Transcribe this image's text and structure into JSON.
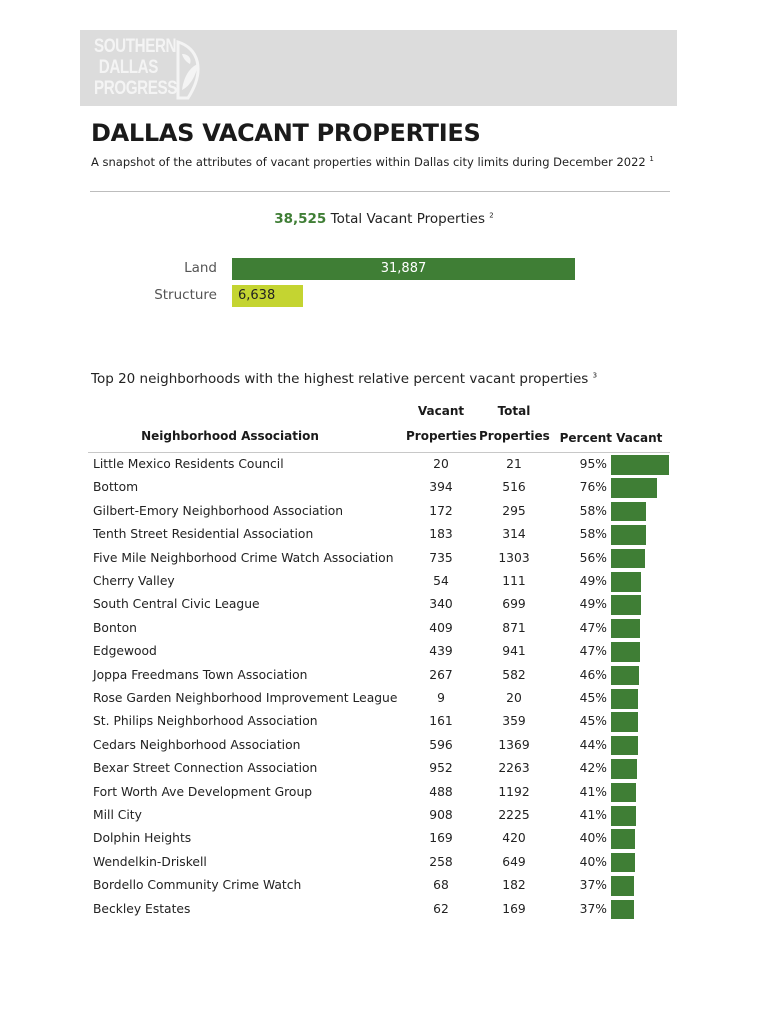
{
  "logo": {
    "text": [
      "SOUTHERN",
      "DALLAS",
      "PROGRESS"
    ]
  },
  "title": "DALLAS VACANT PROPERTIES",
  "subtitle": "A snapshot of the attributes of vacant properties within Dallas city limits during December 2022",
  "subtitle_footnote": "1",
  "total": {
    "value": "38,525",
    "label": "Total Vacant Properties",
    "footnote": "2"
  },
  "colors": {
    "land": "#3f7e35",
    "structure": "#c4d431",
    "percent_bar": "#3f7e35",
    "banner": "#dcdcdc"
  },
  "chart_data": {
    "type": "bar",
    "orientation": "horizontal",
    "categories": [
      "Land",
      "Structure"
    ],
    "values": [
      31887,
      6638
    ],
    "labels": [
      "31,887",
      "6,638"
    ]
  },
  "table": {
    "title": "Top 20 neighborhoods with the highest relative percent vacant properties",
    "title_footnote": "3",
    "headers": {
      "name": "Neighborhood Association",
      "vacant_1": "Vacant",
      "vacant_2": "Properties",
      "total_1": "Total",
      "total_2": "Properties",
      "percent": "Percent Vacant"
    },
    "rows": [
      {
        "name": "Little Mexico Residents Council",
        "vacant": "20",
        "total": "21",
        "percent": "95%",
        "pct": 95
      },
      {
        "name": "Bottom",
        "vacant": "394",
        "total": "516",
        "percent": "76%",
        "pct": 76
      },
      {
        "name": "Gilbert-Emory Neighborhood Association",
        "vacant": "172",
        "total": "295",
        "percent": "58%",
        "pct": 58
      },
      {
        "name": "Tenth Street Residential Association",
        "vacant": "183",
        "total": "314",
        "percent": "58%",
        "pct": 58
      },
      {
        "name": "Five Mile Neighborhood Crime Watch Association",
        "vacant": "735",
        "total": "1303",
        "percent": "56%",
        "pct": 56
      },
      {
        "name": "Cherry Valley",
        "vacant": "54",
        "total": "111",
        "percent": "49%",
        "pct": 49
      },
      {
        "name": "South Central Civic League",
        "vacant": "340",
        "total": "699",
        "percent": "49%",
        "pct": 49
      },
      {
        "name": "Bonton",
        "vacant": "409",
        "total": "871",
        "percent": "47%",
        "pct": 47
      },
      {
        "name": "Edgewood",
        "vacant": "439",
        "total": "941",
        "percent": "47%",
        "pct": 47
      },
      {
        "name": "Joppa Freedmans Town Association",
        "vacant": "267",
        "total": "582",
        "percent": "46%",
        "pct": 46
      },
      {
        "name": "Rose Garden Neighborhood Improvement League",
        "vacant": "9",
        "total": "20",
        "percent": "45%",
        "pct": 45
      },
      {
        "name": "St. Philips Neighborhood Association",
        "vacant": "161",
        "total": "359",
        "percent": "45%",
        "pct": 45
      },
      {
        "name": "Cedars Neighborhood Association",
        "vacant": "596",
        "total": "1369",
        "percent": "44%",
        "pct": 44
      },
      {
        "name": "Bexar Street Connection Association",
        "vacant": "952",
        "total": "2263",
        "percent": "42%",
        "pct": 42
      },
      {
        "name": "Fort Worth Ave Development Group",
        "vacant": "488",
        "total": "1192",
        "percent": "41%",
        "pct": 41
      },
      {
        "name": "Mill City",
        "vacant": "908",
        "total": "2225",
        "percent": "41%",
        "pct": 41
      },
      {
        "name": "Dolphin Heights",
        "vacant": "169",
        "total": "420",
        "percent": "40%",
        "pct": 40
      },
      {
        "name": "Wendelkin-Driskell",
        "vacant": "258",
        "total": "649",
        "percent": "40%",
        "pct": 40
      },
      {
        "name": "Bordello Community Crime Watch",
        "vacant": "68",
        "total": "182",
        "percent": "37%",
        "pct": 37
      },
      {
        "name": "Beckley Estates",
        "vacant": "62",
        "total": "169",
        "percent": "37%",
        "pct": 37
      }
    ]
  }
}
